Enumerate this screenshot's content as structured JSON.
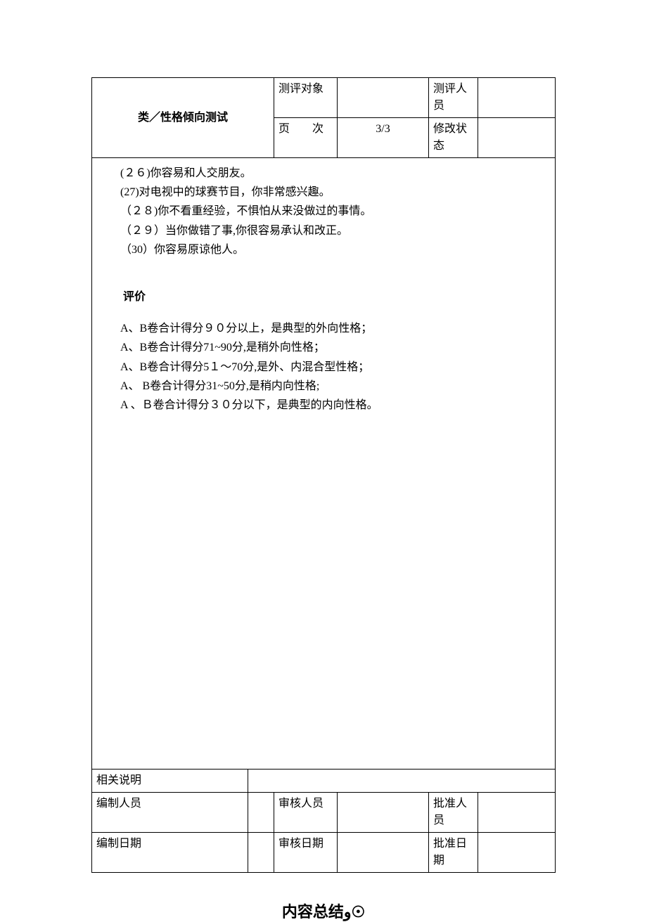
{
  "header": {
    "title": "类／性格倾向测试",
    "row1": {
      "label1": "测评对象",
      "value1": "",
      "label2": "测评人员",
      "value2": ""
    },
    "row2": {
      "label1": "页　　次",
      "value1": "3/3",
      "label2": "修改状态",
      "value2": ""
    }
  },
  "content": {
    "items": [
      "(２６)你容易和人交朋友。",
      "(27)对电视中的球赛节目，你非常感兴趣。",
      "（２８)你不看重经验，不惧怕从来没做过的事情。",
      "（２９）当你做错了事,你很容易承认和改正。",
      "（30）你容易原谅他人。"
    ],
    "eval_title": "评价",
    "eval_lines": [
      "A、B卷合计得分９０分以上，是典型的外向性格；",
      "A、B卷合计得分71~90分,是稍外向性格；",
      "A、B卷合计得分5１～70分,是外、内混合型性格；",
      "A、 B卷合计得分31~50分,是稍内向性格;",
      "A 、Ｂ卷合计得分３０分以下，是典型的内向性格。"
    ]
  },
  "footer": {
    "row1": {
      "label": "相关说明",
      "value": ""
    },
    "row2": {
      "l1": "编制人员",
      "v1": "",
      "l2": "审核人员",
      "v2": "",
      "l3": "批准人员",
      "v3": ""
    },
    "row3": {
      "l1": "编制日期",
      "v1": "",
      "l2": "审核日期",
      "v2": "",
      "l3": "批准日期",
      "v3": ""
    }
  },
  "summary_title": "内容总结"
}
